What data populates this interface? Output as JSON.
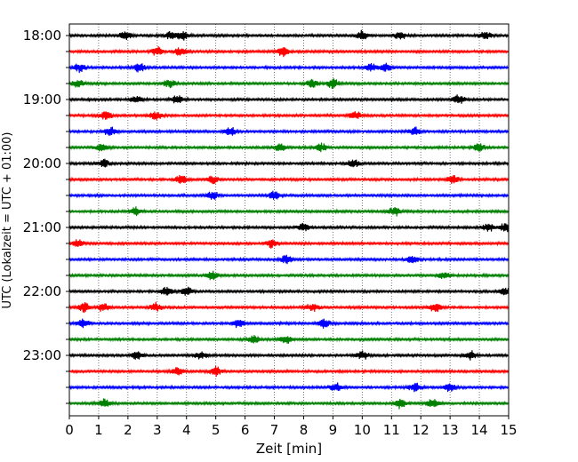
{
  "chart_data": {
    "type": "line",
    "xlabel": "Zeit  [min]",
    "ylabel": "UTC (Lokalzeit = UTC + 01:00)",
    "xlim": [
      0,
      15
    ],
    "x_ticks": [
      "0",
      "1",
      "2",
      "3",
      "4",
      "5",
      "6",
      "7",
      "8",
      "9",
      "10",
      "11",
      "12",
      "13",
      "14",
      "15"
    ],
    "hour_labels": [
      "18:00",
      "19:00",
      "20:00",
      "21:00",
      "22:00",
      "23:00"
    ],
    "trace_count": 24,
    "grid": "vertical dotted at each minute",
    "colors": [
      "#000000",
      "#ff0000",
      "#0000ff",
      "#008000"
    ],
    "events": [
      {
        "trace": 0,
        "x": [
          1.9,
          3.45,
          3.9,
          10.0,
          11.3,
          14.2
        ]
      },
      {
        "trace": 1,
        "x": [
          3.0,
          3.8,
          7.3
        ]
      },
      {
        "trace": 2,
        "x": [
          0.35,
          2.4,
          10.3,
          10.8
        ]
      },
      {
        "trace": 3,
        "x": [
          0.3,
          3.4,
          8.3,
          9.0
        ]
      },
      {
        "trace": 4,
        "x": [
          2.3,
          3.7,
          13.3
        ]
      },
      {
        "trace": 5,
        "x": [
          1.25,
          2.95,
          9.75
        ]
      },
      {
        "trace": 6,
        "x": [
          1.4,
          5.5,
          11.8
        ]
      },
      {
        "trace": 7,
        "x": [
          1.1,
          7.2,
          8.6,
          14.0
        ]
      },
      {
        "trace": 8,
        "x": [
          1.2,
          9.7
        ]
      },
      {
        "trace": 9,
        "x": [
          3.8,
          4.9,
          13.1
        ]
      },
      {
        "trace": 10,
        "x": [
          4.9,
          7.0
        ]
      },
      {
        "trace": 11,
        "x": [
          2.25,
          11.1
        ]
      },
      {
        "trace": 12,
        "x": [
          8.0,
          14.3,
          14.9
        ]
      },
      {
        "trace": 13,
        "x": [
          0.3,
          6.9
        ]
      },
      {
        "trace": 14,
        "x": [
          7.4,
          11.7
        ]
      },
      {
        "trace": 15,
        "x": [
          4.9,
          12.8
        ]
      },
      {
        "trace": 16,
        "x": [
          3.3,
          4.0,
          14.9
        ]
      },
      {
        "trace": 17,
        "x": [
          0.5,
          1.15,
          2.95,
          8.3,
          12.5
        ]
      },
      {
        "trace": 18,
        "x": [
          0.5,
          5.8,
          8.7
        ]
      },
      {
        "trace": 19,
        "x": [
          6.3,
          7.4
        ]
      },
      {
        "trace": 20,
        "x": [
          2.3,
          4.5,
          10.0,
          13.7
        ]
      },
      {
        "trace": 21,
        "x": [
          3.7,
          5.0
        ]
      },
      {
        "trace": 22,
        "x": [
          9.1,
          11.8,
          13.0
        ]
      },
      {
        "trace": 23,
        "x": [
          1.2,
          11.3,
          12.4
        ]
      }
    ]
  }
}
